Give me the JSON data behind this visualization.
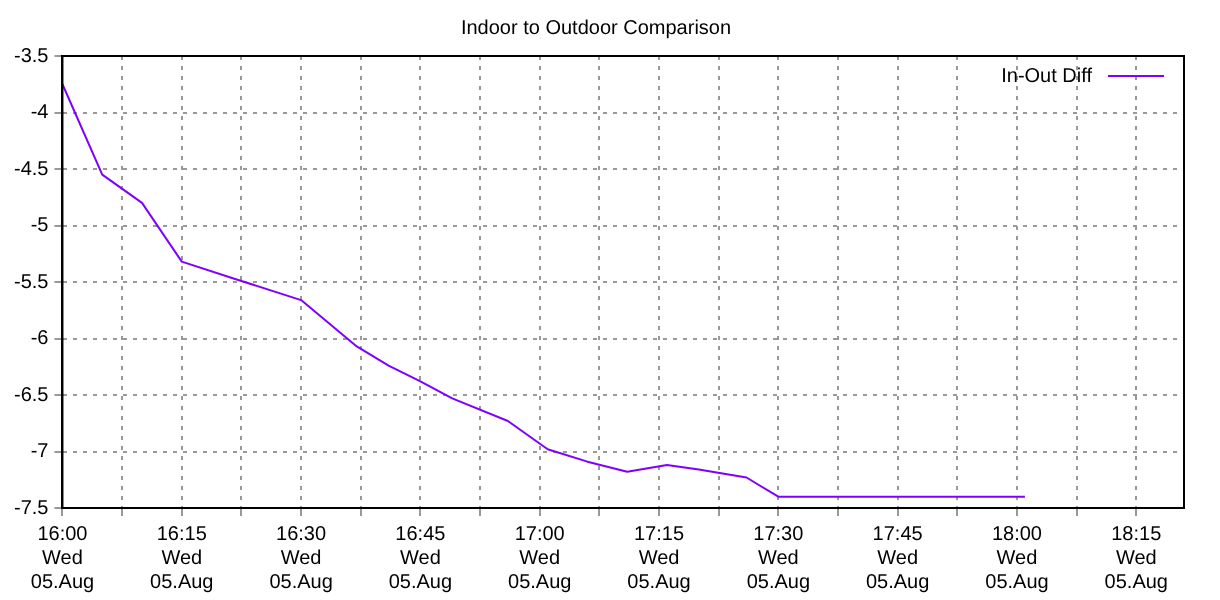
{
  "chart_data": {
    "type": "line",
    "title": "Indoor to Outdoor Comparison",
    "xlim": [
      "--08-05T16:00",
      "--08-05T18:21"
    ],
    "xticks": [
      {
        "value": "--08-05T16:00",
        "label": "16:00\nWed\n05.Aug"
      },
      {
        "value": "--08-05T16:07:30",
        "label": null
      },
      {
        "value": "--08-05T16:15",
        "label": "16:15\nWed\n05.Aug"
      },
      {
        "value": "--08-05T16:22:30",
        "label": null
      },
      {
        "value": "--08-05T16:30",
        "label": "16:30\nWed\n05.Aug"
      },
      {
        "value": "--08-05T16:37:30",
        "label": null
      },
      {
        "value": "--08-05T16:45",
        "label": "16:45\nWed\n05.Aug"
      },
      {
        "value": "--08-05T16:52:30",
        "label": null
      },
      {
        "value": "--08-05T17:00",
        "label": "17:00\nWed\n05.Aug"
      },
      {
        "value": "--08-05T17:07:30",
        "label": null
      },
      {
        "value": "--08-05T17:15",
        "label": "17:15\nWed\n05.Aug"
      },
      {
        "value": "--08-05T17:22:30",
        "label": null
      },
      {
        "value": "--08-05T17:30",
        "label": "17:30\nWed\n05.Aug"
      },
      {
        "value": "--08-05T17:37:30",
        "label": null
      },
      {
        "value": "--08-05T17:45",
        "label": "17:45\nWed\n05.Aug"
      },
      {
        "value": "--08-05T17:52:30",
        "label": null
      },
      {
        "value": "--08-05T18:00",
        "label": "18:00\nWed\n05.Aug"
      },
      {
        "value": "--08-05T18:07:30",
        "label": null
      },
      {
        "value": "--08-05T18:15",
        "label": "18:15\nWed\n05.Aug"
      }
    ],
    "ylim": [
      -7.5,
      -3.5
    ],
    "yticks": [
      -7.5,
      -7,
      -6.5,
      -6,
      -5.5,
      -5,
      -4.5,
      -4,
      -3.5
    ],
    "grid": true,
    "legend": "top right",
    "marker": "none",
    "line_style": "solid",
    "series": [
      {
        "name": "In-Out Diff",
        "color": "#7f00ff",
        "x": [
          "--08-05T16:00",
          "--08-05T16:05",
          "--08-05T16:10",
          "--08-05T16:15",
          "--08-05T16:22",
          "--08-05T16:30",
          "--08-05T16:37",
          "--08-05T16:41",
          "--08-05T16:45",
          "--08-05T16:49",
          "--08-05T16:56",
          "--08-05T17:01",
          "--08-05T17:06",
          "--08-05T17:11",
          "--08-05T17:16",
          "--08-05T17:20",
          "--08-05T17:26",
          "--08-05T17:30",
          "--08-05T18:01"
        ],
        "values": [
          -3.75,
          -4.55,
          -4.8,
          -5.32,
          -5.48,
          -5.66,
          -6.07,
          -6.24,
          -6.38,
          -6.53,
          -6.73,
          -6.98,
          -7.09,
          -7.18,
          -7.12,
          -7.16,
          -7.23,
          -7.4,
          -7.4
        ]
      }
    ]
  }
}
